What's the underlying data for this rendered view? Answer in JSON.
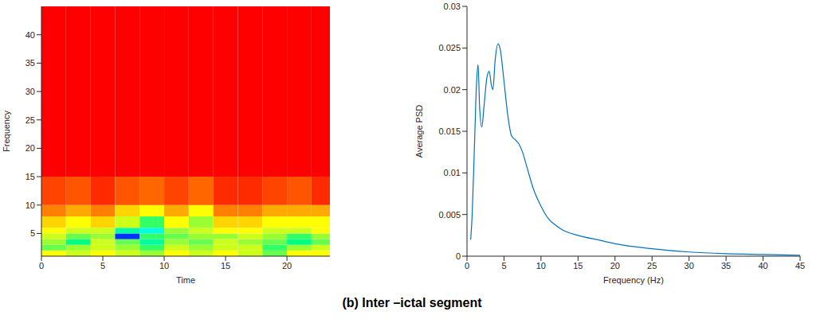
{
  "caption": "(b) Inter –ictal segment",
  "chart_data": [
    {
      "type": "heatmap",
      "x_label": "Time",
      "y_label": "Frequency",
      "xlim": [
        0,
        23.5
      ],
      "ylim": [
        1,
        45
      ],
      "xticks": [
        0,
        5,
        10,
        15,
        20
      ],
      "yticks": [
        5,
        10,
        15,
        20,
        25,
        30,
        35,
        40
      ],
      "x_edges": [
        0,
        2,
        4,
        6,
        8,
        10,
        12,
        14,
        16,
        18,
        20,
        22,
        23.5
      ],
      "y_edges": [
        1,
        2,
        3,
        4,
        5,
        6,
        8,
        10,
        15,
        45
      ],
      "zlim": [
        0,
        1
      ],
      "z": [
        [
          0.3,
          0.35,
          0.3,
          0.35,
          0.4,
          0.3,
          0.35,
          0.3,
          0.35,
          0.45,
          0.3,
          0.3
        ],
        [
          0.45,
          0.4,
          0.35,
          0.4,
          0.5,
          0.35,
          0.4,
          0.35,
          0.35,
          0.5,
          0.4,
          0.35
        ],
        [
          0.4,
          0.55,
          0.35,
          0.45,
          0.6,
          0.4,
          0.45,
          0.35,
          0.4,
          0.45,
          0.55,
          0.45
        ],
        [
          0.35,
          0.45,
          0.4,
          0.95,
          0.5,
          0.45,
          0.4,
          0.4,
          0.35,
          0.4,
          0.5,
          0.4
        ],
        [
          0.3,
          0.35,
          0.35,
          0.6,
          0.7,
          0.4,
          0.35,
          0.3,
          0.3,
          0.35,
          0.35,
          0.3
        ],
        [
          0.25,
          0.3,
          0.25,
          0.35,
          0.5,
          0.3,
          0.4,
          0.25,
          0.25,
          0.3,
          0.3,
          0.3
        ],
        [
          0.15,
          0.2,
          0.15,
          0.25,
          0.3,
          0.2,
          0.3,
          0.15,
          0.15,
          0.2,
          0.2,
          0.2
        ],
        [
          0.08,
          0.1,
          0.05,
          0.1,
          0.12,
          0.08,
          0.12,
          0.05,
          0.05,
          0.08,
          0.1,
          0.05
        ],
        [
          0,
          0,
          0,
          0,
          0,
          0,
          0,
          0,
          0,
          0,
          0,
          0
        ]
      ]
    },
    {
      "type": "line",
      "x_label": "Frequency (Hz)",
      "y_label": "Average PSD",
      "xlim": [
        0,
        45
      ],
      "ylim": [
        0,
        0.03
      ],
      "xticks": [
        0,
        5,
        10,
        15,
        20,
        25,
        30,
        35,
        40,
        45
      ],
      "yticks": [
        0,
        0.005,
        0.01,
        0.015,
        0.02,
        0.025,
        0.03
      ],
      "color": "#0072bd",
      "x": [
        0.5,
        0.7,
        1,
        1.3,
        1.5,
        1.7,
        2,
        2.3,
        2.7,
        3,
        3.3,
        3.5,
        3.8,
        4.2,
        4.5,
        5,
        5.5,
        6,
        6.5,
        7,
        7.5,
        8,
        9,
        10,
        11,
        12,
        13,
        15,
        18,
        20,
        25,
        30,
        35,
        40,
        45
      ],
      "values": [
        0.002,
        0.005,
        0.013,
        0.021,
        0.023,
        0.018,
        0.0155,
        0.018,
        0.0215,
        0.0222,
        0.0205,
        0.02,
        0.0235,
        0.0255,
        0.0248,
        0.021,
        0.017,
        0.0145,
        0.014,
        0.0135,
        0.0125,
        0.011,
        0.008,
        0.006,
        0.0045,
        0.0037,
        0.0031,
        0.0025,
        0.0019,
        0.0015,
        0.0009,
        0.0005,
        0.0003,
        0.0002,
        0.0001
      ]
    }
  ]
}
